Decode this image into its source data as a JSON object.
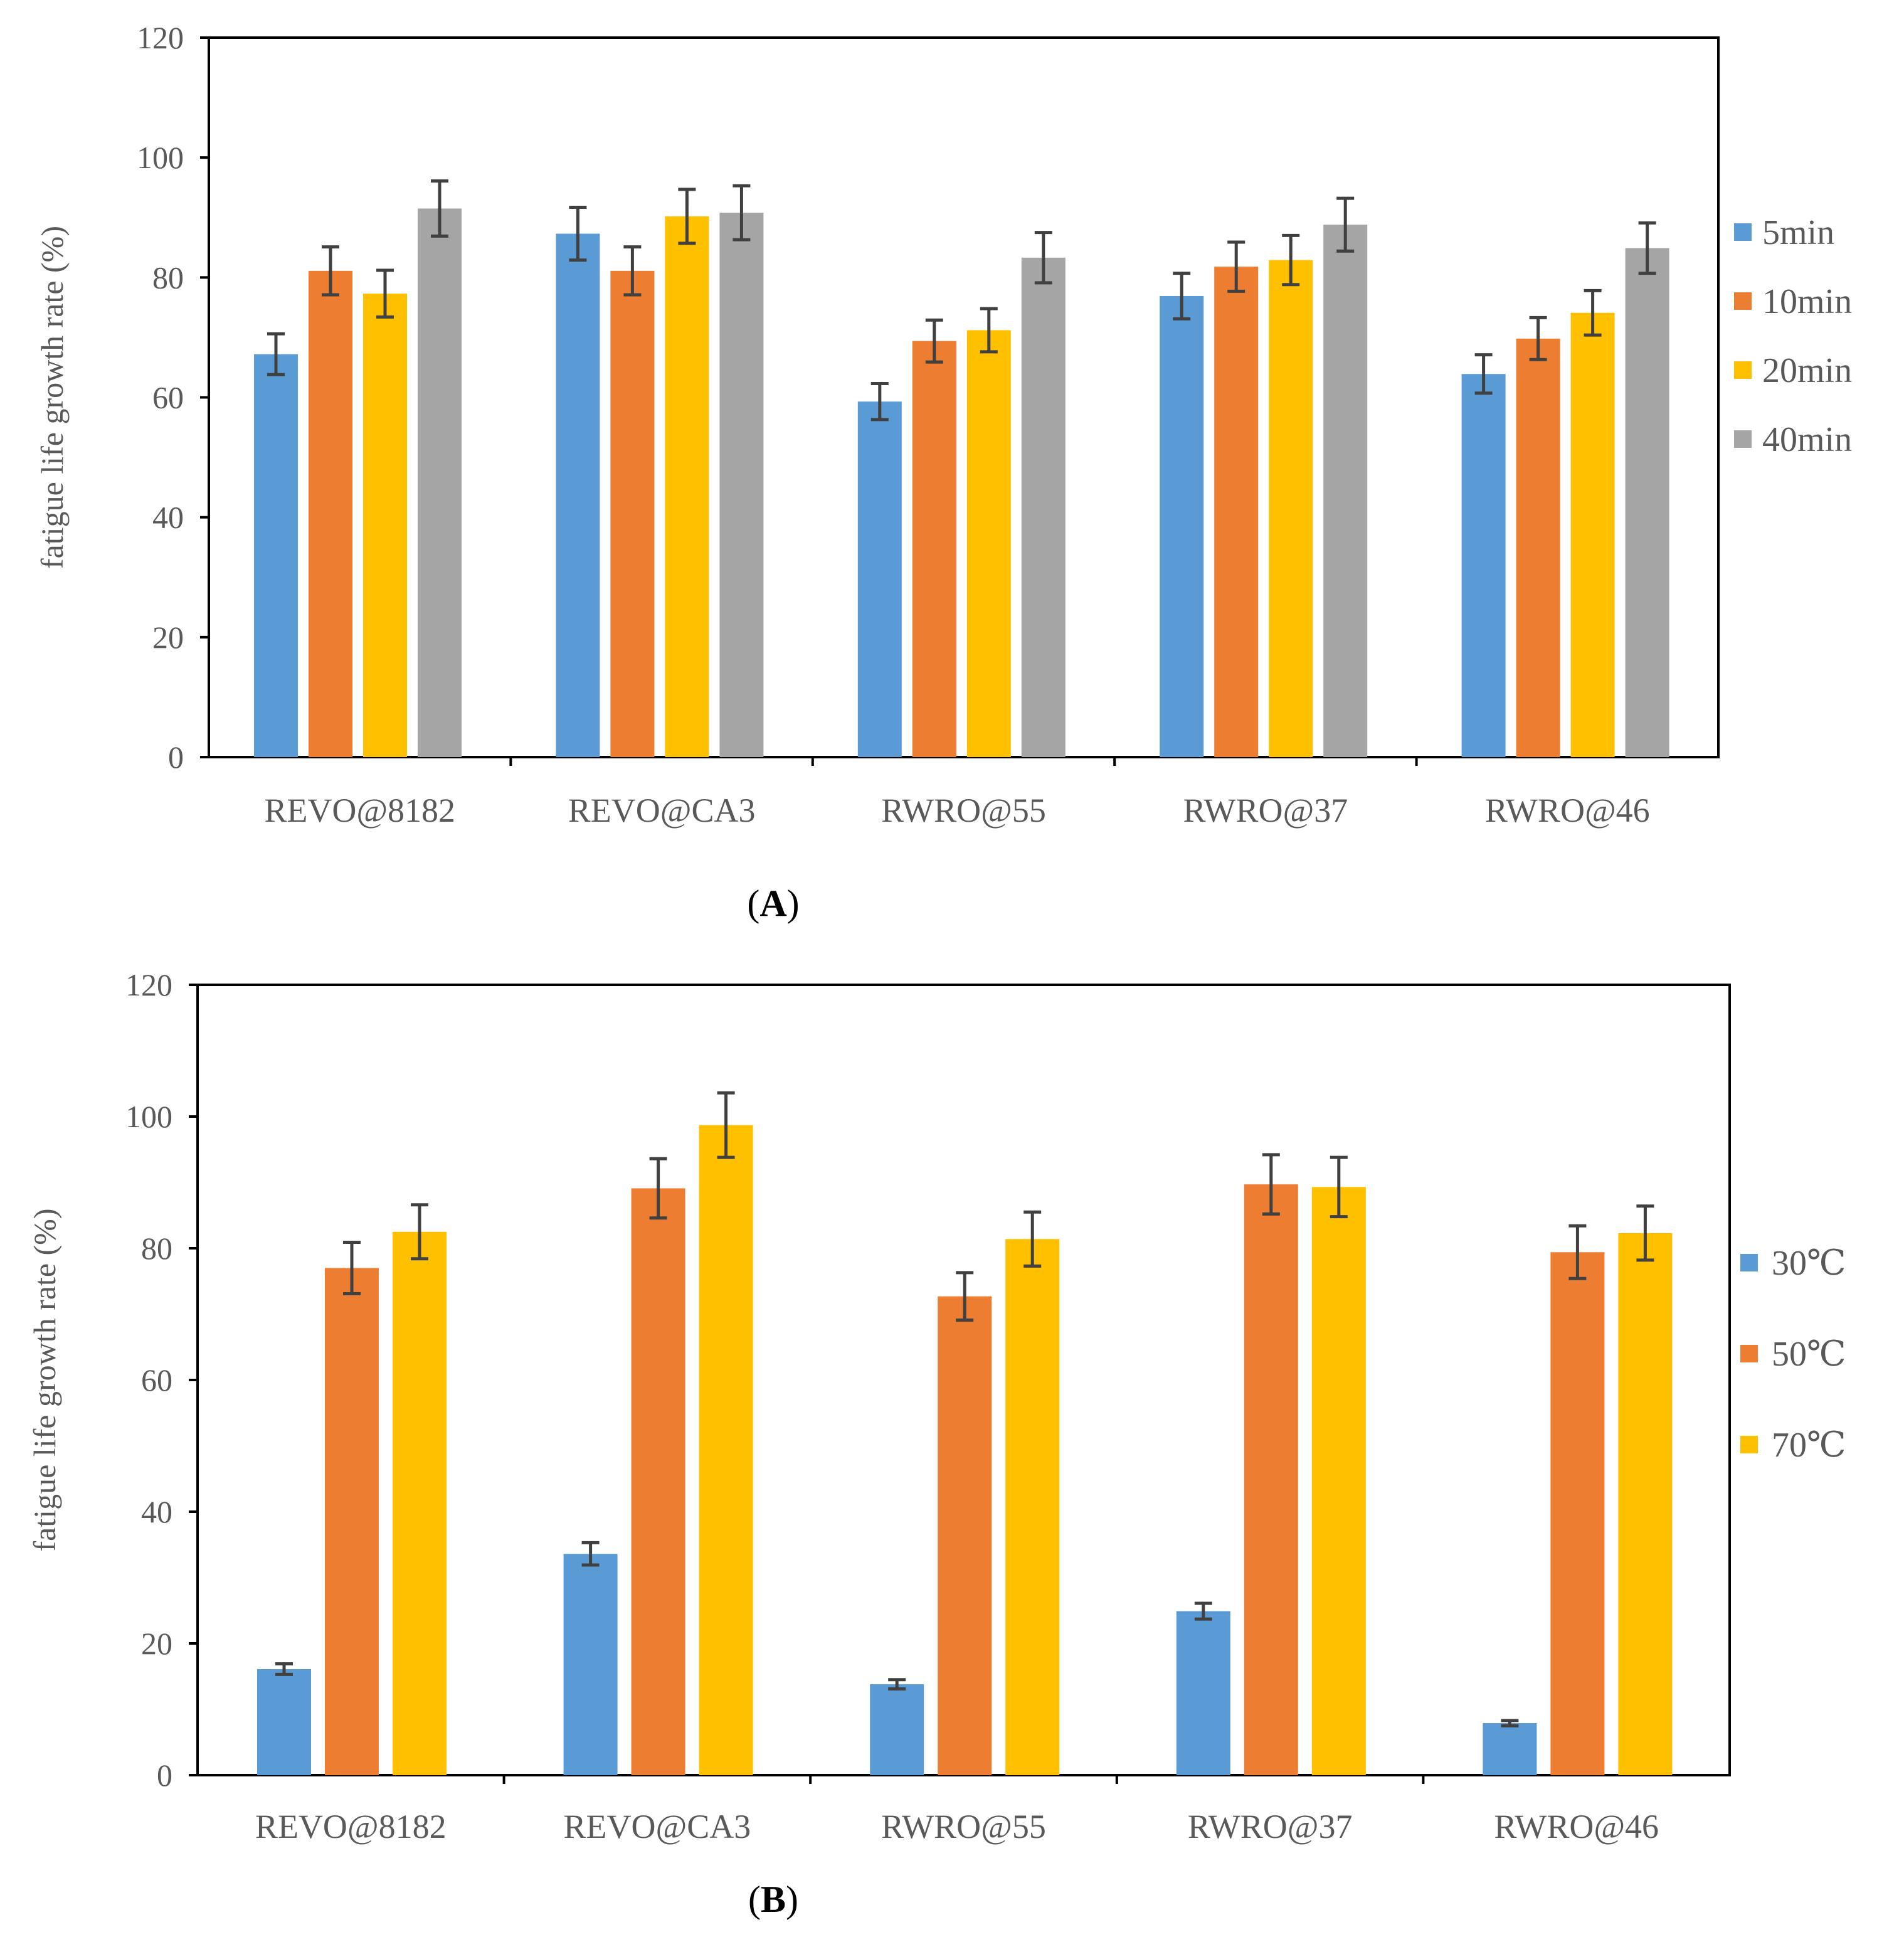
{
  "chart_data": [
    {
      "type": "bar",
      "panel_label": "A",
      "categories": [
        "REVO@8182",
        "REVO@CA3",
        "RWRO@55",
        "RWRO@37",
        "RWRO@46"
      ],
      "series": [
        {
          "name": "5min",
          "color": "#5B9BD5",
          "values": [
            67.2,
            87.3,
            59.3,
            76.9,
            63.9
          ],
          "errors": [
            3.4,
            4.4,
            3.0,
            3.8,
            3.2
          ]
        },
        {
          "name": "10min",
          "color": "#ED7D31",
          "values": [
            81.1,
            81.1,
            69.4,
            81.8,
            69.8
          ],
          "errors": [
            4.0,
            4.0,
            3.5,
            4.1,
            3.5
          ]
        },
        {
          "name": "20min",
          "color": "#FFC000",
          "values": [
            77.3,
            90.2,
            71.2,
            82.9,
            74.1
          ],
          "errors": [
            3.9,
            4.5,
            3.6,
            4.1,
            3.7
          ]
        },
        {
          "name": "40min",
          "color": "#A5A5A5",
          "values": [
            91.5,
            90.8,
            83.3,
            88.8,
            84.9
          ],
          "errors": [
            4.6,
            4.5,
            4.2,
            4.4,
            4.2
          ]
        }
      ],
      "ylabel": "fatigue life growth rate (%)",
      "xlabel": "",
      "ylim": [
        0,
        120
      ],
      "yticks": [
        "0",
        "20",
        "40",
        "60",
        "80",
        "100",
        "120"
      ],
      "grid": false,
      "legend_position": "right"
    },
    {
      "type": "bar",
      "panel_label": "B",
      "categories": [
        "REVO@8182",
        "REVO@CA3",
        "RWRO@55",
        "RWRO@37",
        "RWRO@46"
      ],
      "series": [
        {
          "name": "30℃",
          "color": "#5B9BD5",
          "values": [
            16.1,
            33.6,
            13.8,
            24.9,
            7.9
          ],
          "errors": [
            0.8,
            1.7,
            0.7,
            1.2,
            0.4
          ]
        },
        {
          "name": "50℃",
          "color": "#ED7D31",
          "values": [
            77.0,
            89.1,
            72.7,
            89.7,
            79.4
          ],
          "errors": [
            3.9,
            4.5,
            3.6,
            4.5,
            4.0
          ]
        },
        {
          "name": "70℃",
          "color": "#FFC000",
          "values": [
            82.5,
            98.7,
            81.4,
            89.3,
            82.3
          ],
          "errors": [
            4.1,
            4.9,
            4.1,
            4.5,
            4.1
          ]
        }
      ],
      "ylabel": "fatigue life growth rate (%)",
      "xlabel": "",
      "ylim": [
        0,
        120
      ],
      "yticks": [
        "0",
        "20",
        "40",
        "60",
        "80",
        "100",
        "120"
      ],
      "grid": false,
      "legend_position": "right"
    }
  ]
}
